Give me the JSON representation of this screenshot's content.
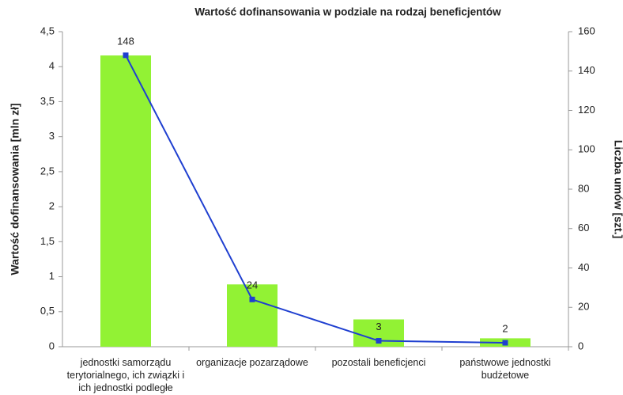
{
  "chart_data": {
    "type": "bar",
    "title": "Wartość dofinansowania  w podziale na rodzaj beneficjentów",
    "ylabel": "Wartość dofinansowania  [mln zł]",
    "y2label": "Liczba  umów [szt.]",
    "categories": [
      "jednostki samorządu terytorialnego, ich związki i ich jednostki podległe",
      "organizacje pozarządowe",
      "pozostali beneficjenci",
      "państwowe jednostki budżetowe"
    ],
    "series": [
      {
        "type": "bar",
        "color": "#92f234",
        "values": [
          4.16,
          0.89,
          0.39,
          0.12
        ]
      },
      {
        "type": "line",
        "color": "#1f3fd0",
        "axis": "y2",
        "values": [
          148,
          24,
          3,
          2
        ]
      }
    ],
    "ylim": [
      0,
      4.5
    ],
    "yticks": [
      0,
      {
        "value": 0.5,
        "label": "0,5"
      },
      1,
      {
        "value": 1.5,
        "label": "1,5"
      },
      2,
      {
        "value": 2.5,
        "label": "2,5"
      },
      3,
      {
        "value": 3.5,
        "label": "3,5"
      },
      4,
      {
        "value": 4.5,
        "label": "4,5"
      }
    ],
    "y2lim": [
      0,
      160
    ],
    "y2ticks": [
      0,
      20,
      40,
      60,
      80,
      100,
      120,
      140,
      160
    ],
    "grid": false
  }
}
